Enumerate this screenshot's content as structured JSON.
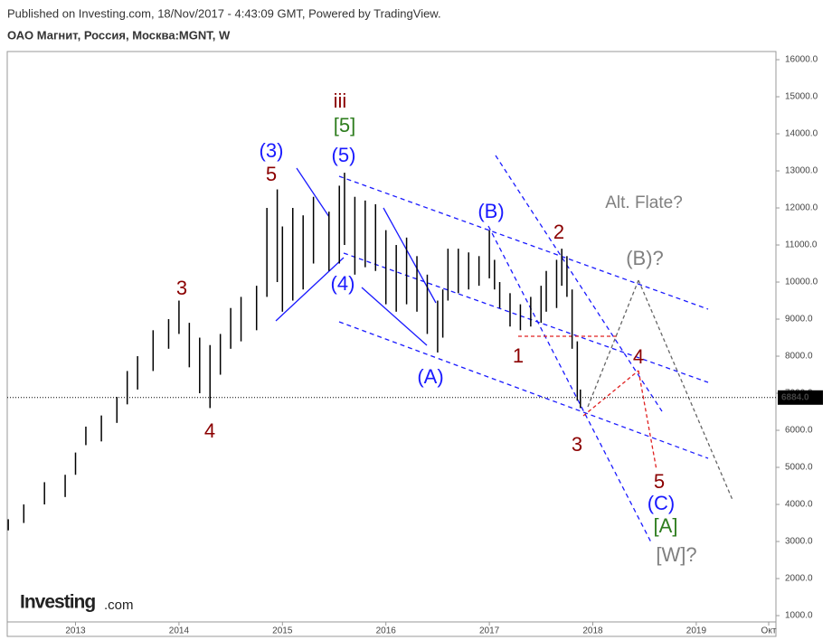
{
  "header": {
    "published": "Published on Investing.com, 18/Nov/2017 - 4:43:09 GMT, Powered by TradingView.",
    "symbol": "ОАО Магнит, Россия, Москва:MGNT, W"
  },
  "logo": {
    "brand": "Investing",
    "suffix": ".com"
  },
  "chart_data": {
    "type": "ohlc",
    "color": "#000000",
    "x": [
      2012.35,
      2012.5,
      2012.7,
      2012.9,
      2013.0,
      2013.1,
      2013.25,
      2013.4,
      2013.5,
      2013.6,
      2013.75,
      2013.9,
      2014.0,
      2014.1,
      2014.2,
      2014.3,
      2014.4,
      2014.5,
      2014.6,
      2014.75,
      2014.85,
      2014.95,
      2015.0,
      2015.1,
      2015.2,
      2015.3,
      2015.45,
      2015.55,
      2015.6,
      2015.7,
      2015.8,
      2015.9,
      2016.0,
      2016.1,
      2016.2,
      2016.3,
      2016.4,
      2016.5,
      2016.55,
      2016.6,
      2016.7,
      2016.8,
      2016.9,
      2017.0,
      2017.05,
      2017.1,
      2017.2,
      2017.3,
      2017.4,
      2017.5,
      2017.55,
      2017.65,
      2017.7,
      2017.75,
      2017.8,
      2017.85,
      2017.88
    ],
    "low": [
      3300,
      3500,
      4000,
      4200,
      4800,
      5600,
      5700,
      6200,
      6700,
      7100,
      7600,
      8200,
      8600,
      7700,
      7000,
      6600,
      7500,
      8200,
      8400,
      8700,
      9600,
      10000,
      9200,
      9500,
      9800,
      10500,
      10300,
      10500,
      11000,
      10200,
      10400,
      10300,
      9400,
      9200,
      9400,
      9200,
      8600,
      8100,
      8500,
      9500,
      9700,
      9800,
      9900,
      10100,
      9800,
      9300,
      8800,
      8700,
      8800,
      8900,
      9200,
      9300,
      9900,
      9600,
      8200,
      6800,
      6600
    ],
    "high": [
      3600,
      4000,
      4600,
      4800,
      5400,
      6100,
      6400,
      6900,
      7600,
      8000,
      8700,
      9000,
      9500,
      8900,
      8500,
      8300,
      8600,
      9300,
      9600,
      9900,
      12000,
      12500,
      11500,
      12000,
      11800,
      12300,
      11900,
      12600,
      12950,
      12300,
      12200,
      12100,
      11400,
      11000,
      11200,
      10700,
      10200,
      9500,
      9800,
      10900,
      10900,
      10800,
      10700,
      11400,
      10600,
      10000,
      9700,
      9400,
      9600,
      9900,
      10300,
      10600,
      10900,
      10700,
      9800,
      8400,
      7100
    ],
    "last": {
      "value": 6884,
      "label": "6884.0"
    },
    "xlim": [
      2012.34,
      2019.77
    ],
    "xticks": [
      {
        "value": 2013,
        "label": "2013"
      },
      {
        "value": 2014,
        "label": "2014"
      },
      {
        "value": 2015,
        "label": "2015"
      },
      {
        "value": 2016,
        "label": "2016"
      },
      {
        "value": 2017,
        "label": "2017"
      },
      {
        "value": 2018,
        "label": "2018"
      },
      {
        "value": 2019,
        "label": "2019"
      },
      {
        "value": 2019.7,
        "label": "Окт"
      }
    ],
    "ylim": [
      830,
      16220
    ],
    "yticks": [
      {
        "value": 1000,
        "label": "1000.0"
      },
      {
        "value": 2000,
        "label": "2000.0"
      },
      {
        "value": 3000,
        "label": "3000.0"
      },
      {
        "value": 4000,
        "label": "4000.0"
      },
      {
        "value": 5000,
        "label": "5000.0"
      },
      {
        "value": 6000,
        "label": "6000.0"
      },
      {
        "value": 7000,
        "label": "7000.0"
      },
      {
        "value": 8000,
        "label": "8000.0"
      },
      {
        "value": 9000,
        "label": "9000.0"
      },
      {
        "value": 10000,
        "label": "10000.0"
      },
      {
        "value": 11000,
        "label": "11000.0"
      },
      {
        "value": 12000,
        "label": "12000.0"
      },
      {
        "value": 13000,
        "label": "13000.0"
      },
      {
        "value": 14000,
        "label": "14000.0"
      },
      {
        "value": 15000,
        "label": "15000.0"
      },
      {
        "value": 16000,
        "label": "16000.0"
      }
    ],
    "annotations": [
      {
        "text": "iii",
        "color": "#8b0000"
      },
      {
        "text": "[5]",
        "color": "#2e7d1e"
      },
      {
        "text": "(5)",
        "color": "#1a1aff"
      },
      {
        "text": "(3)",
        "color": "#1a1aff"
      },
      {
        "text": "5",
        "color": "#8b0000"
      },
      {
        "text": "3",
        "color": "#8b0000"
      },
      {
        "text": "4",
        "color": "#8b0000"
      },
      {
        "text": "(4)",
        "color": "#1a1aff"
      },
      {
        "text": "(A)",
        "color": "#1a1aff"
      },
      {
        "text": "(B)",
        "color": "#1a1aff"
      },
      {
        "text": "2",
        "color": "#8b0000"
      },
      {
        "text": "1",
        "color": "#8b0000"
      },
      {
        "text": "3",
        "color": "#8b0000"
      },
      {
        "text": "4",
        "color": "#8b0000"
      },
      {
        "text": "5",
        "color": "#8b0000"
      },
      {
        "text": "(C)",
        "color": "#1a1aff"
      },
      {
        "text": "[A]",
        "color": "#2e7d1e"
      },
      {
        "text": "[W]?",
        "color": "#808080"
      },
      {
        "text": "Alt. Flate?",
        "color": "#808080"
      },
      {
        "text": "(B)?",
        "color": "#808080"
      }
    ]
  }
}
